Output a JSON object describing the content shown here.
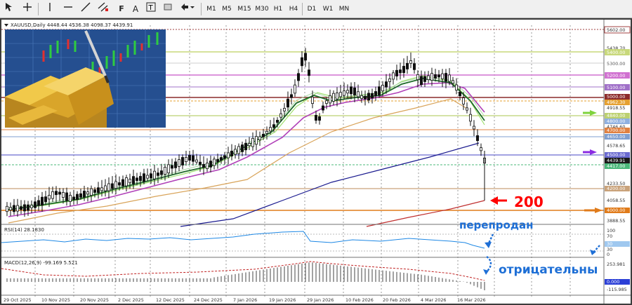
{
  "toolbar": {
    "timeframes": [
      "M1",
      "M5",
      "M15",
      "M30",
      "H1",
      "H4",
      "D1",
      "W1",
      "MN"
    ]
  },
  "chart": {
    "title": "XAUUSD,Daily  4448.44 4536.38 4098.37 4439.91",
    "price_labels": [
      "5602.00",
      "5438.70",
      "5400.00",
      "5300.00",
      "5200.00",
      "5100.00",
      "5000.00",
      "4962.30",
      "4918.55",
      "4840.00",
      "4800.00",
      "4746.60",
      "4700.00",
      "4650.00",
      "4578.65",
      "4500.00",
      "4439.91",
      "4417.00",
      "4233.50",
      "4200.00",
      "4058.55",
      "4000.00",
      "3888.55"
    ],
    "date_labels": [
      "29 Oct 2025",
      "10 Nov 2025",
      "20 Nov 2025",
      "2 Dec 2025",
      "12 Dec 2025",
      "24 Dec 2025",
      "7 Jan 2026",
      "19 Jan 2026",
      "29 Jan 2026",
      "10 Feb 2026",
      "20 Feb 2026",
      "4 Mar 2026",
      "16 Mar 2026"
    ],
    "annotation_200": "200",
    "annotation_oversold": "перепродан",
    "annotation_negative": "отрицательны"
  },
  "rsi": {
    "label": "RSI(14) 28.1830",
    "axis": [
      "100",
      "70",
      "30",
      "30",
      "0"
    ]
  },
  "macd": {
    "label": "MACD(12,26,9) -99.169 5.521",
    "axis": [
      "253.981",
      "0.000",
      "-115.985"
    ]
  },
  "colors": {
    "accent_red": "#ff0000",
    "accent_blue": "#1e6fd6",
    "arrow_green": "#7fd33c",
    "arrow_purple": "#8a2be2",
    "arrow_orange": "#e07b1a"
  }
}
